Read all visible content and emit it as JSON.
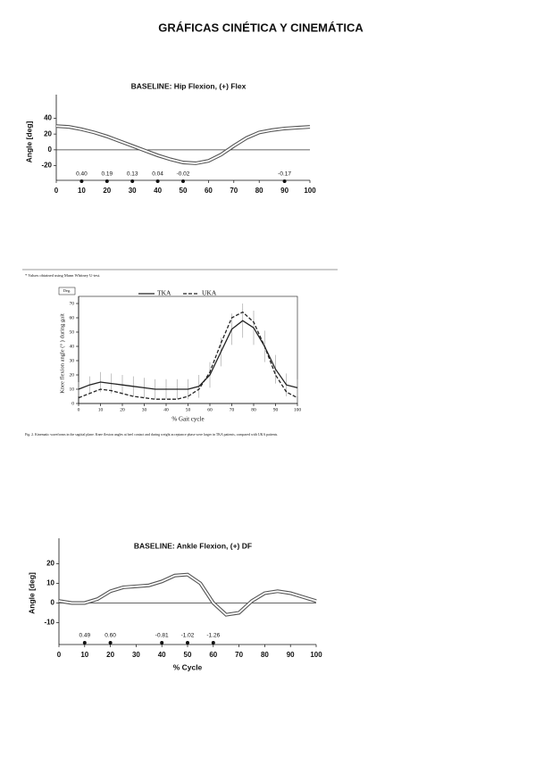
{
  "title": "GRÁFICAS CINÉTICA Y CINEMÁTICA",
  "chart_data": [
    {
      "type": "line",
      "title": "BASELINE: Hip Flexion, (+) Flex",
      "y_label": "Angle [deg]",
      "x": [
        0,
        5,
        10,
        15,
        20,
        25,
        30,
        35,
        40,
        45,
        50,
        55,
        60,
        65,
        70,
        75,
        80,
        85,
        90,
        95,
        100
      ],
      "series": [
        {
          "color": "#555555",
          "values": [
            30,
            29,
            26,
            22,
            17,
            11,
            5,
            -1,
            -7,
            -12,
            -16,
            -17,
            -14,
            -6,
            5,
            15,
            22,
            25,
            27,
            28,
            29
          ]
        }
      ],
      "xlim": [
        0,
        100
      ],
      "ylim": [
        -25,
        45
      ],
      "xticks": [
        0,
        10,
        20,
        30,
        40,
        50,
        60,
        70,
        80,
        90,
        100
      ],
      "yticks": [
        -20,
        0,
        20,
        40
      ],
      "annotations": {
        "x": [
          10,
          20,
          30,
          40,
          50,
          90
        ],
        "labels": [
          "0.40",
          "0.19",
          "0.13",
          "0.04",
          "-0.02",
          "-0.17"
        ]
      }
    },
    {
      "type": "line",
      "footnote": "* Values obtained using Mann Whitney U-test.",
      "y_unit": "Deg.",
      "y_label": "Knee flexion angle (°   ) during gait",
      "x_label": "% Gait cycle",
      "caption": "Fig. 2. Kinematic waveforms in the sagittal plane. Knee flexion angles at heel contact and during weight acceptance phase were larger in TKA patients, compared with UKA patients.",
      "x": [
        0,
        5,
        10,
        15,
        20,
        25,
        30,
        35,
        40,
        45,
        50,
        55,
        60,
        65,
        70,
        75,
        80,
        85,
        90,
        95,
        100
      ],
      "series": [
        {
          "name": "TKA",
          "color": "#222222",
          "dash": false,
          "values": [
            10,
            13,
            15,
            14,
            13,
            12,
            11,
            10,
            10,
            10,
            10,
            12,
            20,
            36,
            52,
            58,
            53,
            40,
            24,
            13,
            11
          ],
          "errors": [
            5,
            6,
            7,
            7,
            7,
            7,
            7,
            7,
            7,
            7,
            7,
            8,
            9,
            10,
            11,
            12,
            12,
            11,
            10,
            8,
            6
          ]
        },
        {
          "name": "UKA",
          "color": "#222222",
          "dash": true,
          "values": [
            4,
            7,
            10,
            9,
            7,
            5,
            4,
            3,
            3,
            3,
            5,
            10,
            22,
            42,
            60,
            64,
            57,
            40,
            20,
            8,
            4
          ]
        }
      ],
      "xlim": [
        0,
        100
      ],
      "ylim": [
        0,
        70
      ],
      "xticks": [
        0,
        10,
        20,
        30,
        40,
        50,
        60,
        70,
        80,
        90,
        100
      ],
      "yticks": [
        0,
        10,
        20,
        30,
        40,
        50,
        60,
        70
      ]
    },
    {
      "type": "line",
      "title": "BASELINE: Ankle Flexion, (+) DF",
      "y_label": "Angle [deg]",
      "x_label": "% Cycle",
      "x": [
        0,
        5,
        10,
        15,
        20,
        25,
        30,
        35,
        40,
        45,
        50,
        55,
        60,
        65,
        70,
        75,
        80,
        85,
        90,
        95,
        100
      ],
      "series": [
        {
          "color": "#555555",
          "values": [
            1,
            0,
            0,
            2,
            6,
            8,
            8.5,
            9,
            11,
            14,
            14.5,
            10,
            0,
            -6,
            -5,
            1,
            5,
            6,
            5,
            3,
            1
          ]
        }
      ],
      "xlim": [
        0,
        100
      ],
      "ylim": [
        -13,
        23
      ],
      "xticks": [
        0,
        10,
        20,
        30,
        40,
        50,
        60,
        70,
        80,
        90,
        100
      ],
      "yticks": [
        -10,
        0,
        10,
        20
      ],
      "annotations": {
        "x": [
          10,
          20,
          40,
          50,
          60
        ],
        "labels": [
          "0.49",
          "0.60",
          "-0.81",
          "-1.02",
          "-1.26"
        ]
      }
    }
  ]
}
